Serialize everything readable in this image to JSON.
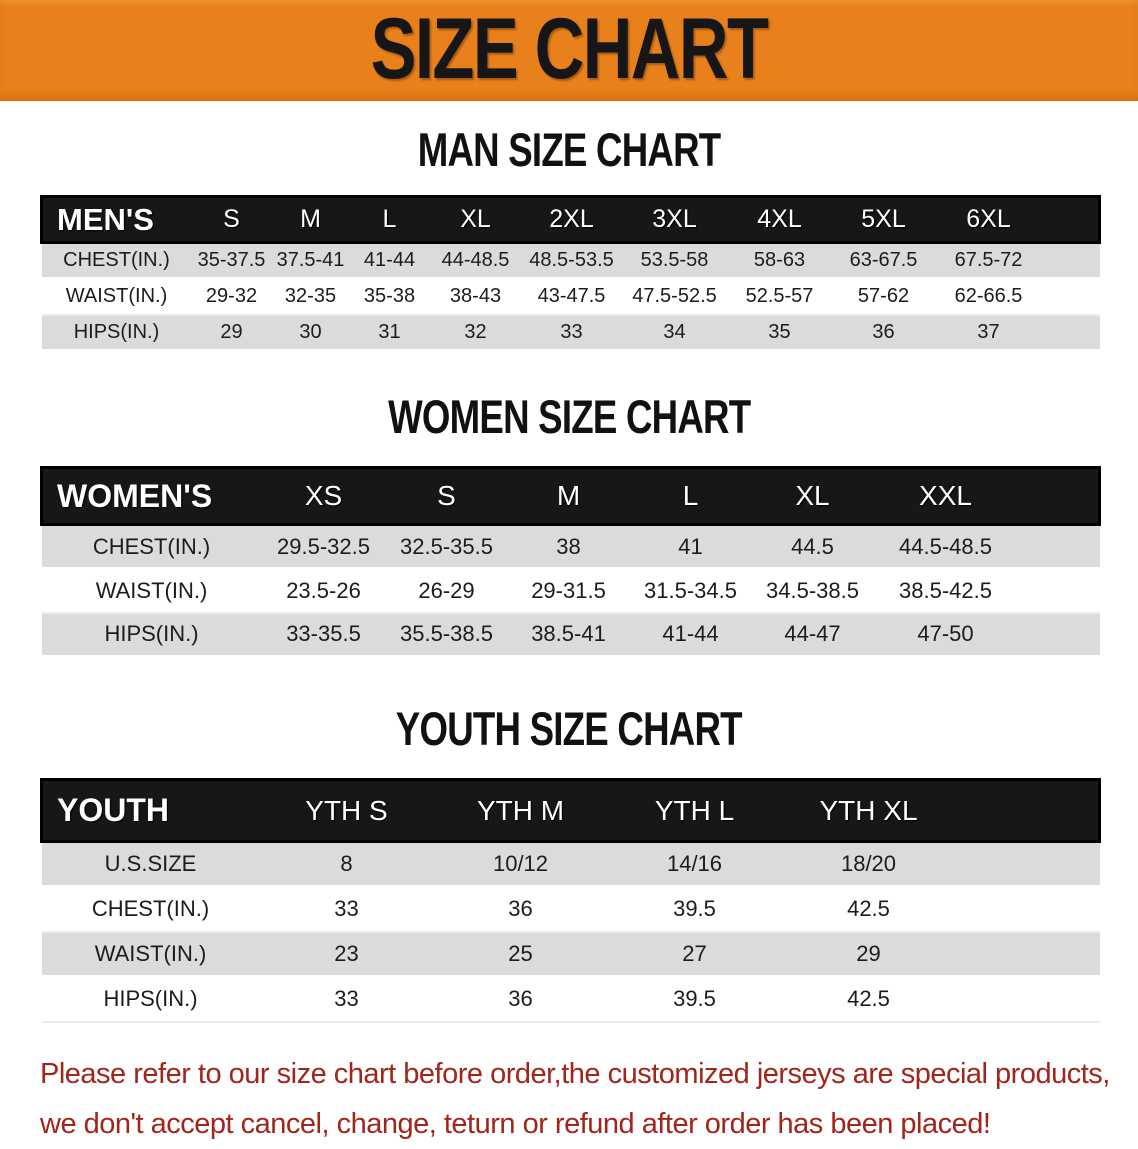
{
  "banner": {
    "title": "SIZE CHART",
    "bg_color": "#E8811C",
    "text_color": "#161616"
  },
  "sections": [
    {
      "heading": "MAN SIZE CHART",
      "table": {
        "header_label": "MEN'S",
        "sizes": [
          "S",
          "M",
          "L",
          "XL",
          "2XL",
          "3XL",
          "4XL",
          "5XL",
          "6XL"
        ],
        "rows": [
          {
            "label": "CHEST(IN.)",
            "values": [
              "35-37.5",
              "37.5-41",
              "41-44",
              "44-48.5",
              "48.5-53.5",
              "53.5-58",
              "58-63",
              "63-67.5",
              "67.5-72"
            ]
          },
          {
            "label": "WAIST(IN.)",
            "values": [
              "29-32",
              "32-35",
              "35-38",
              "38-43",
              "43-47.5",
              "47.5-52.5",
              "52.5-57",
              "57-62",
              "62-66.5"
            ]
          },
          {
            "label": "HIPS(IN.)",
            "values": [
              "29",
              "30",
              "31",
              "32",
              "33",
              "34",
              "35",
              "36",
              "37"
            ]
          }
        ]
      }
    },
    {
      "heading": "WOMEN SIZE CHART",
      "table": {
        "header_label": "WOMEN'S",
        "sizes": [
          "XS",
          "S",
          "M",
          "L",
          "XL",
          "XXL"
        ],
        "rows": [
          {
            "label": "CHEST(IN.)",
            "values": [
              "29.5-32.5",
              "32.5-35.5",
              "38",
              "41",
              "44.5",
              "44.5-48.5"
            ]
          },
          {
            "label": "WAIST(IN.)",
            "values": [
              "23.5-26",
              "26-29",
              "29-31.5",
              "31.5-34.5",
              "34.5-38.5",
              "38.5-42.5"
            ]
          },
          {
            "label": "HIPS(IN.)",
            "values": [
              "33-35.5",
              "35.5-38.5",
              "38.5-41",
              "41-44",
              "44-47",
              "47-50"
            ]
          }
        ]
      }
    },
    {
      "heading": "YOUTH SIZE CHART",
      "table": {
        "header_label": "YOUTH",
        "sizes": [
          "YTH S",
          "YTH M",
          "YTH L",
          "YTH XL"
        ],
        "rows": [
          {
            "label": "U.S.SIZE",
            "values": [
              "8",
              "10/12",
              "14/16",
              "18/20"
            ]
          },
          {
            "label": "CHEST(IN.)",
            "values": [
              "33",
              "36",
              "39.5",
              "42.5"
            ]
          },
          {
            "label": "WAIST(IN.)",
            "values": [
              "23",
              "25",
              "27",
              "29"
            ]
          },
          {
            "label": "HIPS(IN.)",
            "values": [
              "33",
              "36",
              "39.5",
              "42.5"
            ]
          }
        ]
      }
    }
  ],
  "footer": {
    "line1": "Please refer to our size chart before order,the customized jerseys are special products,",
    "line2": "we don't accept cancel, change, teturn or refund after order has been placed!",
    "text_color": "#A2251C"
  }
}
